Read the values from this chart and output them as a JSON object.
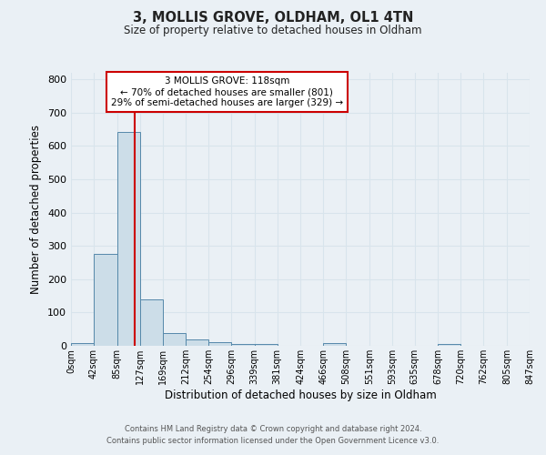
{
  "title": "3, MOLLIS GROVE, OLDHAM, OL1 4TN",
  "subtitle": "Size of property relative to detached houses in Oldham",
  "xlabel": "Distribution of detached houses by size in Oldham",
  "ylabel": "Number of detached properties",
  "bar_color": "#ccdde8",
  "bar_edge_color": "#5588aa",
  "bg_color": "#eaf0f5",
  "grid_color": "#d8e4ec",
  "bin_edges": [
    0,
    42,
    85,
    127,
    169,
    212,
    254,
    296,
    339,
    381,
    424,
    466,
    508,
    551,
    593,
    635,
    678,
    720,
    762,
    805,
    847
  ],
  "bin_labels": [
    "0sqm",
    "42sqm",
    "85sqm",
    "127sqm",
    "169sqm",
    "212sqm",
    "254sqm",
    "296sqm",
    "339sqm",
    "381sqm",
    "424sqm",
    "466sqm",
    "508sqm",
    "551sqm",
    "593sqm",
    "635sqm",
    "678sqm",
    "720sqm",
    "762sqm",
    "805sqm",
    "847sqm"
  ],
  "counts": [
    8,
    275,
    643,
    140,
    38,
    20,
    12,
    5,
    5,
    0,
    0,
    8,
    0,
    0,
    0,
    0,
    5,
    0,
    0,
    0
  ],
  "red_line_x": 118,
  "annot_line1": "3 MOLLIS GROVE: 118sqm",
  "annot_line2": "← 70% of detached houses are smaller (801)",
  "annot_line3": "29% of semi-detached houses are larger (329) →",
  "annotation_box_color": "#ffffff",
  "annotation_box_edge": "#cc0000",
  "ylim": [
    0,
    820
  ],
  "yticks": [
    0,
    100,
    200,
    300,
    400,
    500,
    600,
    700,
    800
  ],
  "footer1": "Contains HM Land Registry data © Crown copyright and database right 2024.",
  "footer2": "Contains public sector information licensed under the Open Government Licence v3.0."
}
